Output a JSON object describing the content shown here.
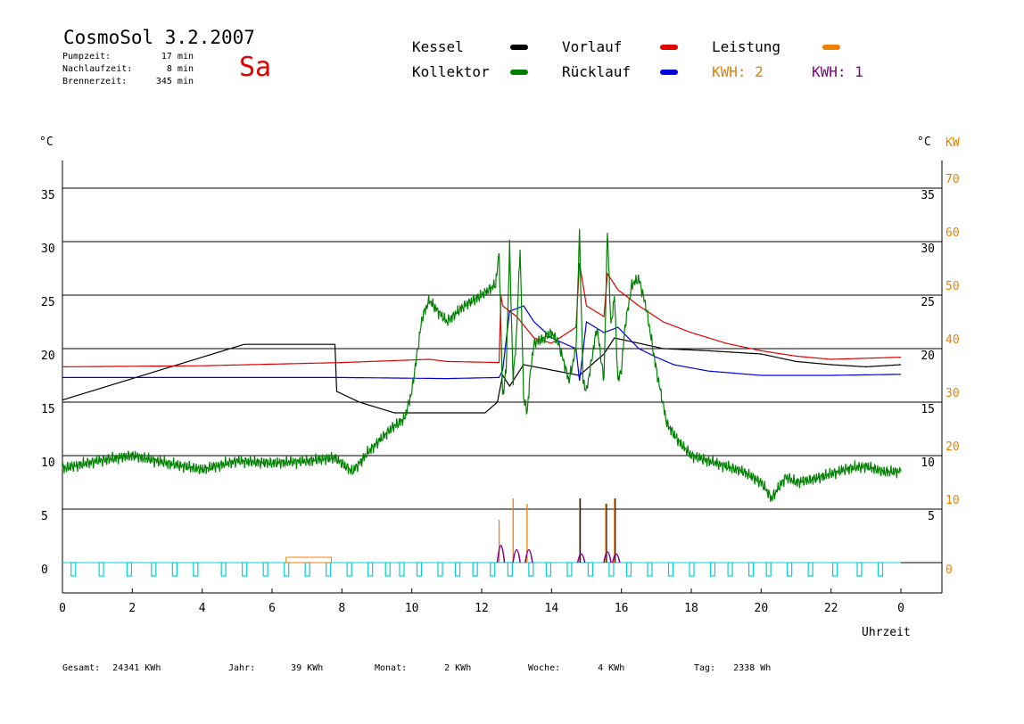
{
  "header": {
    "title": "CosmoSol 3.2.2007",
    "weekday": "Sa",
    "stats": [
      {
        "label": "Pumpzeit:",
        "value": "17 min"
      },
      {
        "label": "Nachlaufzeit:",
        "value": "8 min"
      },
      {
        "label": "Brennerzeit:",
        "value": "345 min"
      }
    ]
  },
  "legend": {
    "items": [
      {
        "label": "Kessel",
        "color": "#000000"
      },
      {
        "label": "Vorlauf",
        "color": "#e00000"
      },
      {
        "label": "Leistung",
        "color": "#f08000"
      },
      {
        "label": "Kollektor",
        "color": "#008000"
      },
      {
        "label": "Rücklauf",
        "color": "#0000e0"
      }
    ],
    "kwh_left": {
      "label": "KWH: 2",
      "color": "#e08000"
    },
    "kwh_right": {
      "label": "KWH: 1",
      "color": "#800080"
    }
  },
  "axes": {
    "left_unit": "°C",
    "right_unit_c": "°C",
    "right_unit_kw": "KW",
    "x_title": "Uhrzeit"
  },
  "footer": [
    {
      "label": "Gesamt:",
      "value": "24341 KWh"
    },
    {
      "label": "Jahr:",
      "value": "39 KWh"
    },
    {
      "label": "Monat:",
      "value": "2 KWh"
    },
    {
      "label": "Woche:",
      "value": "4 KWh"
    },
    {
      "label": "Tag:",
      "value": "2338 Wh"
    }
  ],
  "chart_data": {
    "type": "line",
    "xlabel": "Uhrzeit",
    "ylabel": "°C",
    "ylabel_right": "KW",
    "xlim": [
      0,
      24
    ],
    "ylim": [
      -3,
      40
    ],
    "x_ticks": [
      "0",
      "2",
      "4",
      "6",
      "8",
      "10",
      "12",
      "14",
      "16",
      "18",
      "20",
      "22",
      "0"
    ],
    "y_ticks_left": [
      "0",
      "5",
      "10",
      "15",
      "20",
      "25",
      "30",
      "35"
    ],
    "y_ticks_right_c": [
      "5",
      "10",
      "15",
      "20",
      "25",
      "30",
      "35"
    ],
    "y_ticks_right_kw": [
      "0",
      "10",
      "20",
      "30",
      "40",
      "50",
      "60",
      "70"
    ],
    "grid": "horizontal",
    "colors": {
      "kessel": "#000000",
      "vorlauf": "#e00000",
      "ruecklauf": "#0000e0",
      "kollektor": "#008000",
      "leistung": "#f08000",
      "kwh_purple": "#800080",
      "pump": "#00d0d0"
    },
    "series": [
      {
        "name": "Kessel",
        "key": "kessel",
        "x": [
          0,
          5.2,
          7.8,
          7.85,
          8.5,
          9.5,
          12.1,
          12.45,
          12.6,
          12.8,
          13.2,
          14.0,
          14.8,
          15.5,
          15.8,
          16.5,
          17.2,
          18.5,
          20.0,
          21.0,
          22.0,
          23.0,
          24.0
        ],
        "y": [
          15.2,
          20.4,
          20.4,
          16.0,
          15.0,
          14.0,
          14.0,
          15.0,
          17.5,
          16.5,
          18.5,
          18.0,
          17.5,
          19.5,
          21.0,
          20.5,
          20.0,
          19.8,
          19.5,
          18.8,
          18.5,
          18.3,
          18.5
        ]
      },
      {
        "name": "Vorlauf",
        "key": "vorlauf",
        "x": [
          0,
          4,
          8,
          10.5,
          11,
          12.5,
          12.55,
          12.6,
          13.0,
          13.5,
          14.0,
          14.7,
          14.8,
          15.0,
          15.5,
          15.6,
          15.9,
          16.5,
          17.2,
          18.0,
          19.0,
          20.0,
          21.0,
          22.0,
          23.0,
          24.0
        ],
        "y": [
          18.3,
          18.4,
          18.7,
          19.0,
          18.8,
          18.7,
          25.0,
          24.0,
          23.0,
          21.0,
          20.5,
          22.0,
          28.0,
          24.0,
          23.0,
          27.0,
          25.5,
          24.0,
          22.5,
          21.5,
          20.5,
          19.8,
          19.3,
          19.0,
          19.1,
          19.2
        ]
      },
      {
        "name": "Rücklauf",
        "key": "ruecklauf",
        "x": [
          0,
          4,
          8,
          11,
          12.5,
          12.6,
          12.8,
          13.2,
          13.5,
          14.0,
          14.7,
          14.8,
          15.0,
          15.5,
          15.9,
          16.5,
          17.0,
          17.5,
          18.5,
          20.0,
          22.0,
          24.0
        ],
        "y": [
          17.3,
          17.3,
          17.3,
          17.2,
          17.3,
          18.0,
          23.5,
          24.0,
          22.5,
          21.0,
          20.0,
          17.0,
          22.5,
          21.5,
          22.0,
          20.0,
          19.2,
          18.5,
          17.9,
          17.5,
          17.5,
          17.6
        ]
      },
      {
        "name": "Kollektor",
        "key": "kollektor",
        "x": [
          0,
          1,
          2,
          3,
          4,
          5,
          6,
          7,
          7.8,
          8.3,
          8.8,
          9.4,
          9.8,
          10.0,
          10.3,
          10.5,
          11.0,
          11.5,
          12.0,
          12.4,
          12.5,
          12.6,
          12.7,
          12.8,
          12.9,
          13.0,
          13.1,
          13.2,
          13.3,
          13.4,
          13.5,
          13.8,
          14.0,
          14.2,
          14.5,
          14.7,
          14.8,
          14.9,
          15.0,
          15.3,
          15.5,
          15.6,
          15.7,
          15.8,
          15.9,
          16.0,
          16.1,
          16.3,
          16.5,
          16.7,
          17.0,
          17.3,
          17.6,
          18.0,
          18.5,
          19.0,
          19.5,
          20.0,
          20.3,
          20.5,
          20.7,
          21.0,
          21.5,
          22.0,
          22.5,
          23.0,
          23.5,
          24.0
        ],
        "y": [
          8.8,
          9.5,
          10.0,
          9.3,
          8.7,
          9.5,
          9.3,
          9.5,
          9.8,
          8.5,
          10.5,
          12.5,
          13.5,
          16.0,
          23.0,
          24.5,
          22.5,
          24.0,
          25.0,
          26.0,
          29.0,
          15.5,
          18.0,
          29.5,
          17.0,
          21.5,
          29.5,
          15.5,
          14.0,
          18.0,
          20.5,
          21.0,
          21.5,
          20.5,
          17.0,
          20.0,
          31.0,
          17.0,
          16.0,
          22.0,
          17.0,
          31.0,
          22.0,
          25.0,
          17.0,
          18.0,
          22.0,
          26.0,
          26.5,
          24.0,
          18.0,
          13.0,
          11.5,
          10.0,
          9.5,
          9.0,
          8.5,
          7.5,
          6.0,
          7.0,
          8.0,
          7.5,
          7.8,
          8.3,
          8.8,
          9.0,
          8.5,
          8.5
        ]
      }
    ],
    "leistung_spikes": [
      {
        "x": 12.5,
        "kw": 8
      },
      {
        "x": 12.9,
        "kw": 12
      },
      {
        "x": 13.3,
        "kw": 11
      },
      {
        "x": 14.8,
        "kw": 12
      },
      {
        "x": 15.55,
        "kw": 11
      },
      {
        "x": 15.8,
        "kw": 12
      }
    ],
    "kessel_spikes": [
      {
        "x": 14.8,
        "kw": 12
      },
      {
        "x": 15.55,
        "kw": 11
      },
      {
        "x": 15.8,
        "kw": 12
      }
    ],
    "kwh_bumps": [
      {
        "x": 12.55,
        "kw": 4
      },
      {
        "x": 13.0,
        "kw": 3
      },
      {
        "x": 13.35,
        "kw": 3
      },
      {
        "x": 14.85,
        "kw": 2
      },
      {
        "x": 15.6,
        "kw": 2.5
      },
      {
        "x": 15.85,
        "kw": 2
      }
    ],
    "morning_leistung": [
      {
        "x0": 6.4,
        "x1": 7.7,
        "kw": 1
      }
    ],
    "pump_pulses_x": [
      0.3,
      1.1,
      1.9,
      2.6,
      3.2,
      3.8,
      4.6,
      5.2,
      5.8,
      6.4,
      7.0,
      7.6,
      8.2,
      8.8,
      9.3,
      9.7,
      10.2,
      10.8,
      11.3,
      11.8,
      12.3,
      12.8,
      13.4,
      13.9,
      14.5,
      15.1,
      15.7,
      16.2,
      16.8,
      17.4,
      18.0,
      18.6,
      19.1,
      19.7,
      20.2,
      20.8,
      21.4,
      22.1,
      22.8,
      23.4
    ]
  }
}
